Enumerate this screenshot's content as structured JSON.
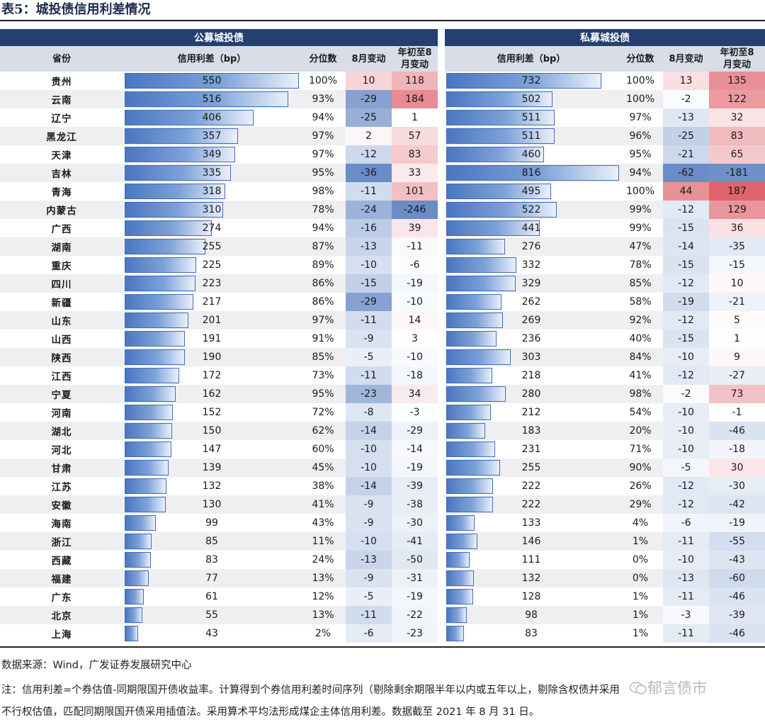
{
  "title": "表5：城投债信用利差情况",
  "groups": {
    "public": "公募城投债",
    "private": "私募城投债"
  },
  "headers": {
    "province": "省份",
    "spread": "信用利差（bp）",
    "percentile": "分位数",
    "aug_change": "8月变动",
    "ytd_change_l1": "年初至8",
    "ytd_change_l2": "月变动"
  },
  "chart_data": {
    "type": "table",
    "rows": [
      {
        "province": "贵州",
        "pub_spread": 550,
        "pub_pct": "100%",
        "pub_aug": 10,
        "pub_ytd": 118,
        "pri_spread": 732,
        "pri_pct": "100%",
        "pri_aug": 13,
        "pri_ytd": 135
      },
      {
        "province": "云南",
        "pub_spread": 516,
        "pub_pct": "93%",
        "pub_aug": -29,
        "pub_ytd": 184,
        "pri_spread": 502,
        "pri_pct": "100%",
        "pri_aug": -2,
        "pri_ytd": 122
      },
      {
        "province": "辽宁",
        "pub_spread": 406,
        "pub_pct": "94%",
        "pub_aug": -25,
        "pub_ytd": 1,
        "pri_spread": 511,
        "pri_pct": "97%",
        "pri_aug": -13,
        "pri_ytd": 32
      },
      {
        "province": "黑龙江",
        "pub_spread": 357,
        "pub_pct": "97%",
        "pub_aug": 2,
        "pub_ytd": 57,
        "pri_spread": 511,
        "pri_pct": "96%",
        "pri_aug": -25,
        "pri_ytd": 83
      },
      {
        "province": "天津",
        "pub_spread": 349,
        "pub_pct": "97%",
        "pub_aug": -12,
        "pub_ytd": 83,
        "pri_spread": 460,
        "pri_pct": "95%",
        "pri_aug": -21,
        "pri_ytd": 65
      },
      {
        "province": "吉林",
        "pub_spread": 335,
        "pub_pct": "95%",
        "pub_aug": -36,
        "pub_ytd": 33,
        "pri_spread": 816,
        "pri_pct": "94%",
        "pri_aug": -62,
        "pri_ytd": -181
      },
      {
        "province": "青海",
        "pub_spread": 318,
        "pub_pct": "98%",
        "pub_aug": -11,
        "pub_ytd": 101,
        "pri_spread": 495,
        "pri_pct": "100%",
        "pri_aug": 44,
        "pri_ytd": 187
      },
      {
        "province": "内蒙古",
        "pub_spread": 310,
        "pub_pct": "78%",
        "pub_aug": -24,
        "pub_ytd": -246,
        "pri_spread": 522,
        "pri_pct": "99%",
        "pri_aug": -12,
        "pri_ytd": 129
      },
      {
        "province": "广西",
        "pub_spread": 274,
        "pub_pct": "94%",
        "pub_aug": -16,
        "pub_ytd": 39,
        "pri_spread": 441,
        "pri_pct": "99%",
        "pri_aug": -15,
        "pri_ytd": 36
      },
      {
        "province": "湖南",
        "pub_spread": 255,
        "pub_pct": "87%",
        "pub_aug": -13,
        "pub_ytd": -11,
        "pri_spread": 276,
        "pri_pct": "47%",
        "pri_aug": -14,
        "pri_ytd": -35
      },
      {
        "province": "重庆",
        "pub_spread": 225,
        "pub_pct": "89%",
        "pub_aug": -10,
        "pub_ytd": -6,
        "pri_spread": 332,
        "pri_pct": "78%",
        "pri_aug": -15,
        "pri_ytd": -15
      },
      {
        "province": "四川",
        "pub_spread": 223,
        "pub_pct": "86%",
        "pub_aug": -15,
        "pub_ytd": -19,
        "pri_spread": 329,
        "pri_pct": "85%",
        "pri_aug": -12,
        "pri_ytd": 10
      },
      {
        "province": "新疆",
        "pub_spread": 217,
        "pub_pct": "86%",
        "pub_aug": -29,
        "pub_ytd": -10,
        "pri_spread": 262,
        "pri_pct": "58%",
        "pri_aug": -19,
        "pri_ytd": -21
      },
      {
        "province": "山东",
        "pub_spread": 201,
        "pub_pct": "97%",
        "pub_aug": -11,
        "pub_ytd": 14,
        "pri_spread": 269,
        "pri_pct": "92%",
        "pri_aug": -12,
        "pri_ytd": 5
      },
      {
        "province": "山西",
        "pub_spread": 191,
        "pub_pct": "91%",
        "pub_aug": -9,
        "pub_ytd": 3,
        "pri_spread": 236,
        "pri_pct": "40%",
        "pri_aug": -15,
        "pri_ytd": 1
      },
      {
        "province": "陕西",
        "pub_spread": 190,
        "pub_pct": "85%",
        "pub_aug": -5,
        "pub_ytd": -10,
        "pri_spread": 303,
        "pri_pct": "84%",
        "pri_aug": -10,
        "pri_ytd": 9
      },
      {
        "province": "江西",
        "pub_spread": 172,
        "pub_pct": "73%",
        "pub_aug": -11,
        "pub_ytd": -18,
        "pri_spread": 218,
        "pri_pct": "41%",
        "pri_aug": -12,
        "pri_ytd": -27
      },
      {
        "province": "宁夏",
        "pub_spread": 162,
        "pub_pct": "95%",
        "pub_aug": -23,
        "pub_ytd": 34,
        "pri_spread": 280,
        "pri_pct": "98%",
        "pri_aug": -2,
        "pri_ytd": 73
      },
      {
        "province": "河南",
        "pub_spread": 152,
        "pub_pct": "72%",
        "pub_aug": -8,
        "pub_ytd": -3,
        "pri_spread": 212,
        "pri_pct": "54%",
        "pri_aug": -10,
        "pri_ytd": -1
      },
      {
        "province": "湖北",
        "pub_spread": 150,
        "pub_pct": "62%",
        "pub_aug": -14,
        "pub_ytd": -29,
        "pri_spread": 183,
        "pri_pct": "20%",
        "pri_aug": -10,
        "pri_ytd": -46
      },
      {
        "province": "河北",
        "pub_spread": 147,
        "pub_pct": "60%",
        "pub_aug": -10,
        "pub_ytd": -14,
        "pri_spread": 231,
        "pri_pct": "71%",
        "pri_aug": -10,
        "pri_ytd": -18
      },
      {
        "province": "甘肃",
        "pub_spread": 139,
        "pub_pct": "45%",
        "pub_aug": -10,
        "pub_ytd": -19,
        "pri_spread": 255,
        "pri_pct": "90%",
        "pri_aug": -5,
        "pri_ytd": 30
      },
      {
        "province": "江苏",
        "pub_spread": 132,
        "pub_pct": "38%",
        "pub_aug": -14,
        "pub_ytd": -39,
        "pri_spread": 222,
        "pri_pct": "26%",
        "pri_aug": -12,
        "pri_ytd": -30
      },
      {
        "province": "安徽",
        "pub_spread": 130,
        "pub_pct": "41%",
        "pub_aug": -9,
        "pub_ytd": -38,
        "pri_spread": 222,
        "pri_pct": "29%",
        "pri_aug": -12,
        "pri_ytd": -42
      },
      {
        "province": "海南",
        "pub_spread": 99,
        "pub_pct": "43%",
        "pub_aug": -9,
        "pub_ytd": -30,
        "pri_spread": 133,
        "pri_pct": "4%",
        "pri_aug": -6,
        "pri_ytd": -19
      },
      {
        "province": "浙江",
        "pub_spread": 85,
        "pub_pct": "11%",
        "pub_aug": -10,
        "pub_ytd": -41,
        "pri_spread": 146,
        "pri_pct": "1%",
        "pri_aug": -11,
        "pri_ytd": -55
      },
      {
        "province": "西藏",
        "pub_spread": 83,
        "pub_pct": "24%",
        "pub_aug": -13,
        "pub_ytd": -50,
        "pri_spread": 111,
        "pri_pct": "0%",
        "pri_aug": -10,
        "pri_ytd": -43
      },
      {
        "province": "福建",
        "pub_spread": 77,
        "pub_pct": "13%",
        "pub_aug": -9,
        "pub_ytd": -31,
        "pri_spread": 132,
        "pri_pct": "0%",
        "pri_aug": -13,
        "pri_ytd": -60
      },
      {
        "province": "广东",
        "pub_spread": 61,
        "pub_pct": "12%",
        "pub_aug": -5,
        "pub_ytd": -19,
        "pri_spread": 128,
        "pri_pct": "1%",
        "pri_aug": -11,
        "pri_ytd": -46
      },
      {
        "province": "北京",
        "pub_spread": 55,
        "pub_pct": "13%",
        "pub_aug": -11,
        "pub_ytd": -22,
        "pri_spread": 98,
        "pri_pct": "1%",
        "pri_aug": -3,
        "pri_ytd": -39
      },
      {
        "province": "上海",
        "pub_spread": 43,
        "pub_pct": "2%",
        "pub_aug": -6,
        "pub_ytd": -23,
        "pri_spread": 83,
        "pri_pct": "1%",
        "pri_aug": -11,
        "pri_ytd": -46
      }
    ]
  },
  "footer": {
    "source": "数据来源：Wind，广发证券发展研究中心",
    "note_line1": "注：信用利差=个券估值-同期限国开债收益率。计算得到个券信用利差时间序列（剔除剩余期限半年以内或五年以上，剔除含权债并采用",
    "note_line2": "不行权估值，匹配同期限国开债采用插值法。采用算术平均法形成煤企主体信用利差。数据截至 2021 年 8 月 31 日。"
  },
  "watermark": "郁言债市",
  "colors": {
    "header_bg": "#23406e",
    "subheader_bg": "#d9dde7",
    "row_stripe": "#efeff2",
    "bar_dark": "#4a76c1",
    "heat_pos": "#e06470",
    "heat_neg": "#6a8cc7"
  }
}
